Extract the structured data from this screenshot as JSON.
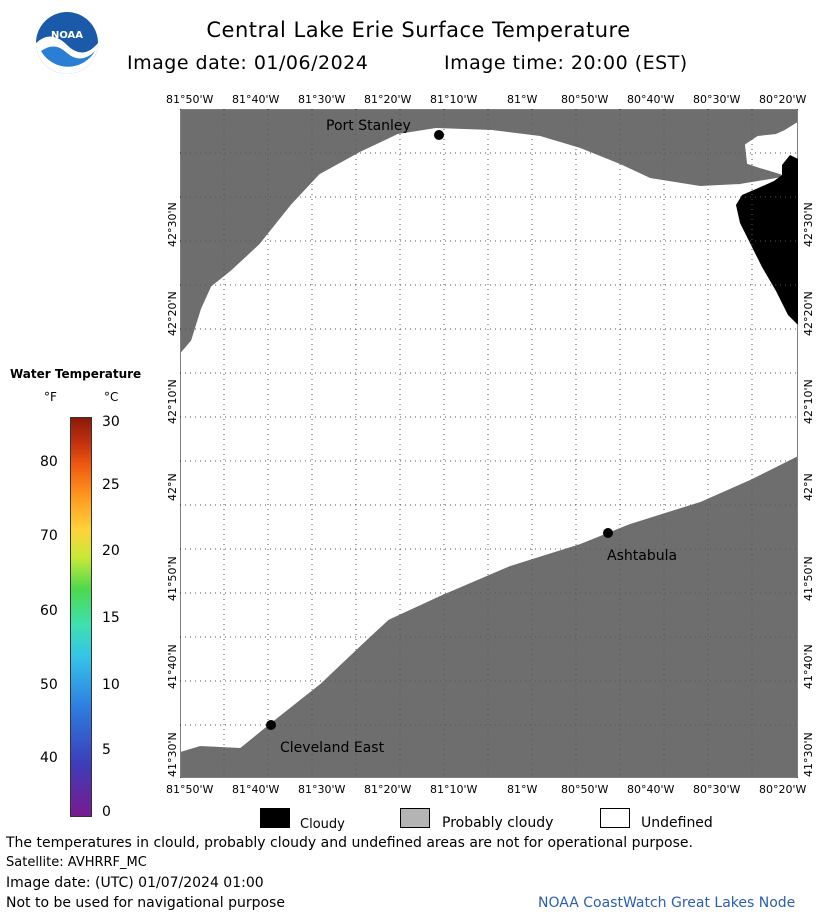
{
  "header": {
    "title": "Central Lake Erie Surface Temperature",
    "image_date_label": "Image date: 01/06/2024",
    "image_time_label": "Image time: 20:00 (EST)"
  },
  "logo": {
    "text": "NOAA"
  },
  "map": {
    "lon_labels": [
      "81°50'W",
      "81°40'W",
      "81°30'W",
      "81°20'W",
      "81°10'W",
      "81°W",
      "80°50'W",
      "80°40'W",
      "80°30'W",
      "80°20'W"
    ],
    "lat_labels": [
      "42°30'N",
      "42°20'N",
      "42°10'N",
      "42°N",
      "41°50'N",
      "41°40'N",
      "41°30'N"
    ],
    "cities": [
      {
        "name": "Port Stanley"
      },
      {
        "name": "Ashtabula"
      },
      {
        "name": "Cleveland East"
      }
    ],
    "colors": {
      "land": "#6e6e6e",
      "cloud": "#000000",
      "undefined": "#ffffff",
      "grid": "#555555"
    }
  },
  "color_scale": {
    "title": "Water Temperature",
    "unit_f": "°F",
    "unit_c": "°C",
    "f_ticks": [
      "80",
      "70",
      "60",
      "50",
      "40"
    ],
    "c_ticks": [
      "30",
      "25",
      "20",
      "15",
      "10",
      "5",
      "0"
    ]
  },
  "legend": {
    "cloudy": "Cloudy",
    "probably_cloudy": "Probably cloudy",
    "undefined": "Undefined",
    "colors": {
      "cloudy": "#000000",
      "probably_cloudy": "#b4b4b4",
      "undefined": "#ffffff"
    }
  },
  "footer": {
    "disclaimer": "The temperatures in clould, probably cloudy and undefined areas are not for operational purpose.",
    "satellite": "Satellite: AVHRRF_MC",
    "utc_date": "Image date: (UTC) 01/07/2024  01:00",
    "navigation": "Not to be used for navigational purpose",
    "node": "NOAA CoastWatch Great Lakes Node"
  }
}
